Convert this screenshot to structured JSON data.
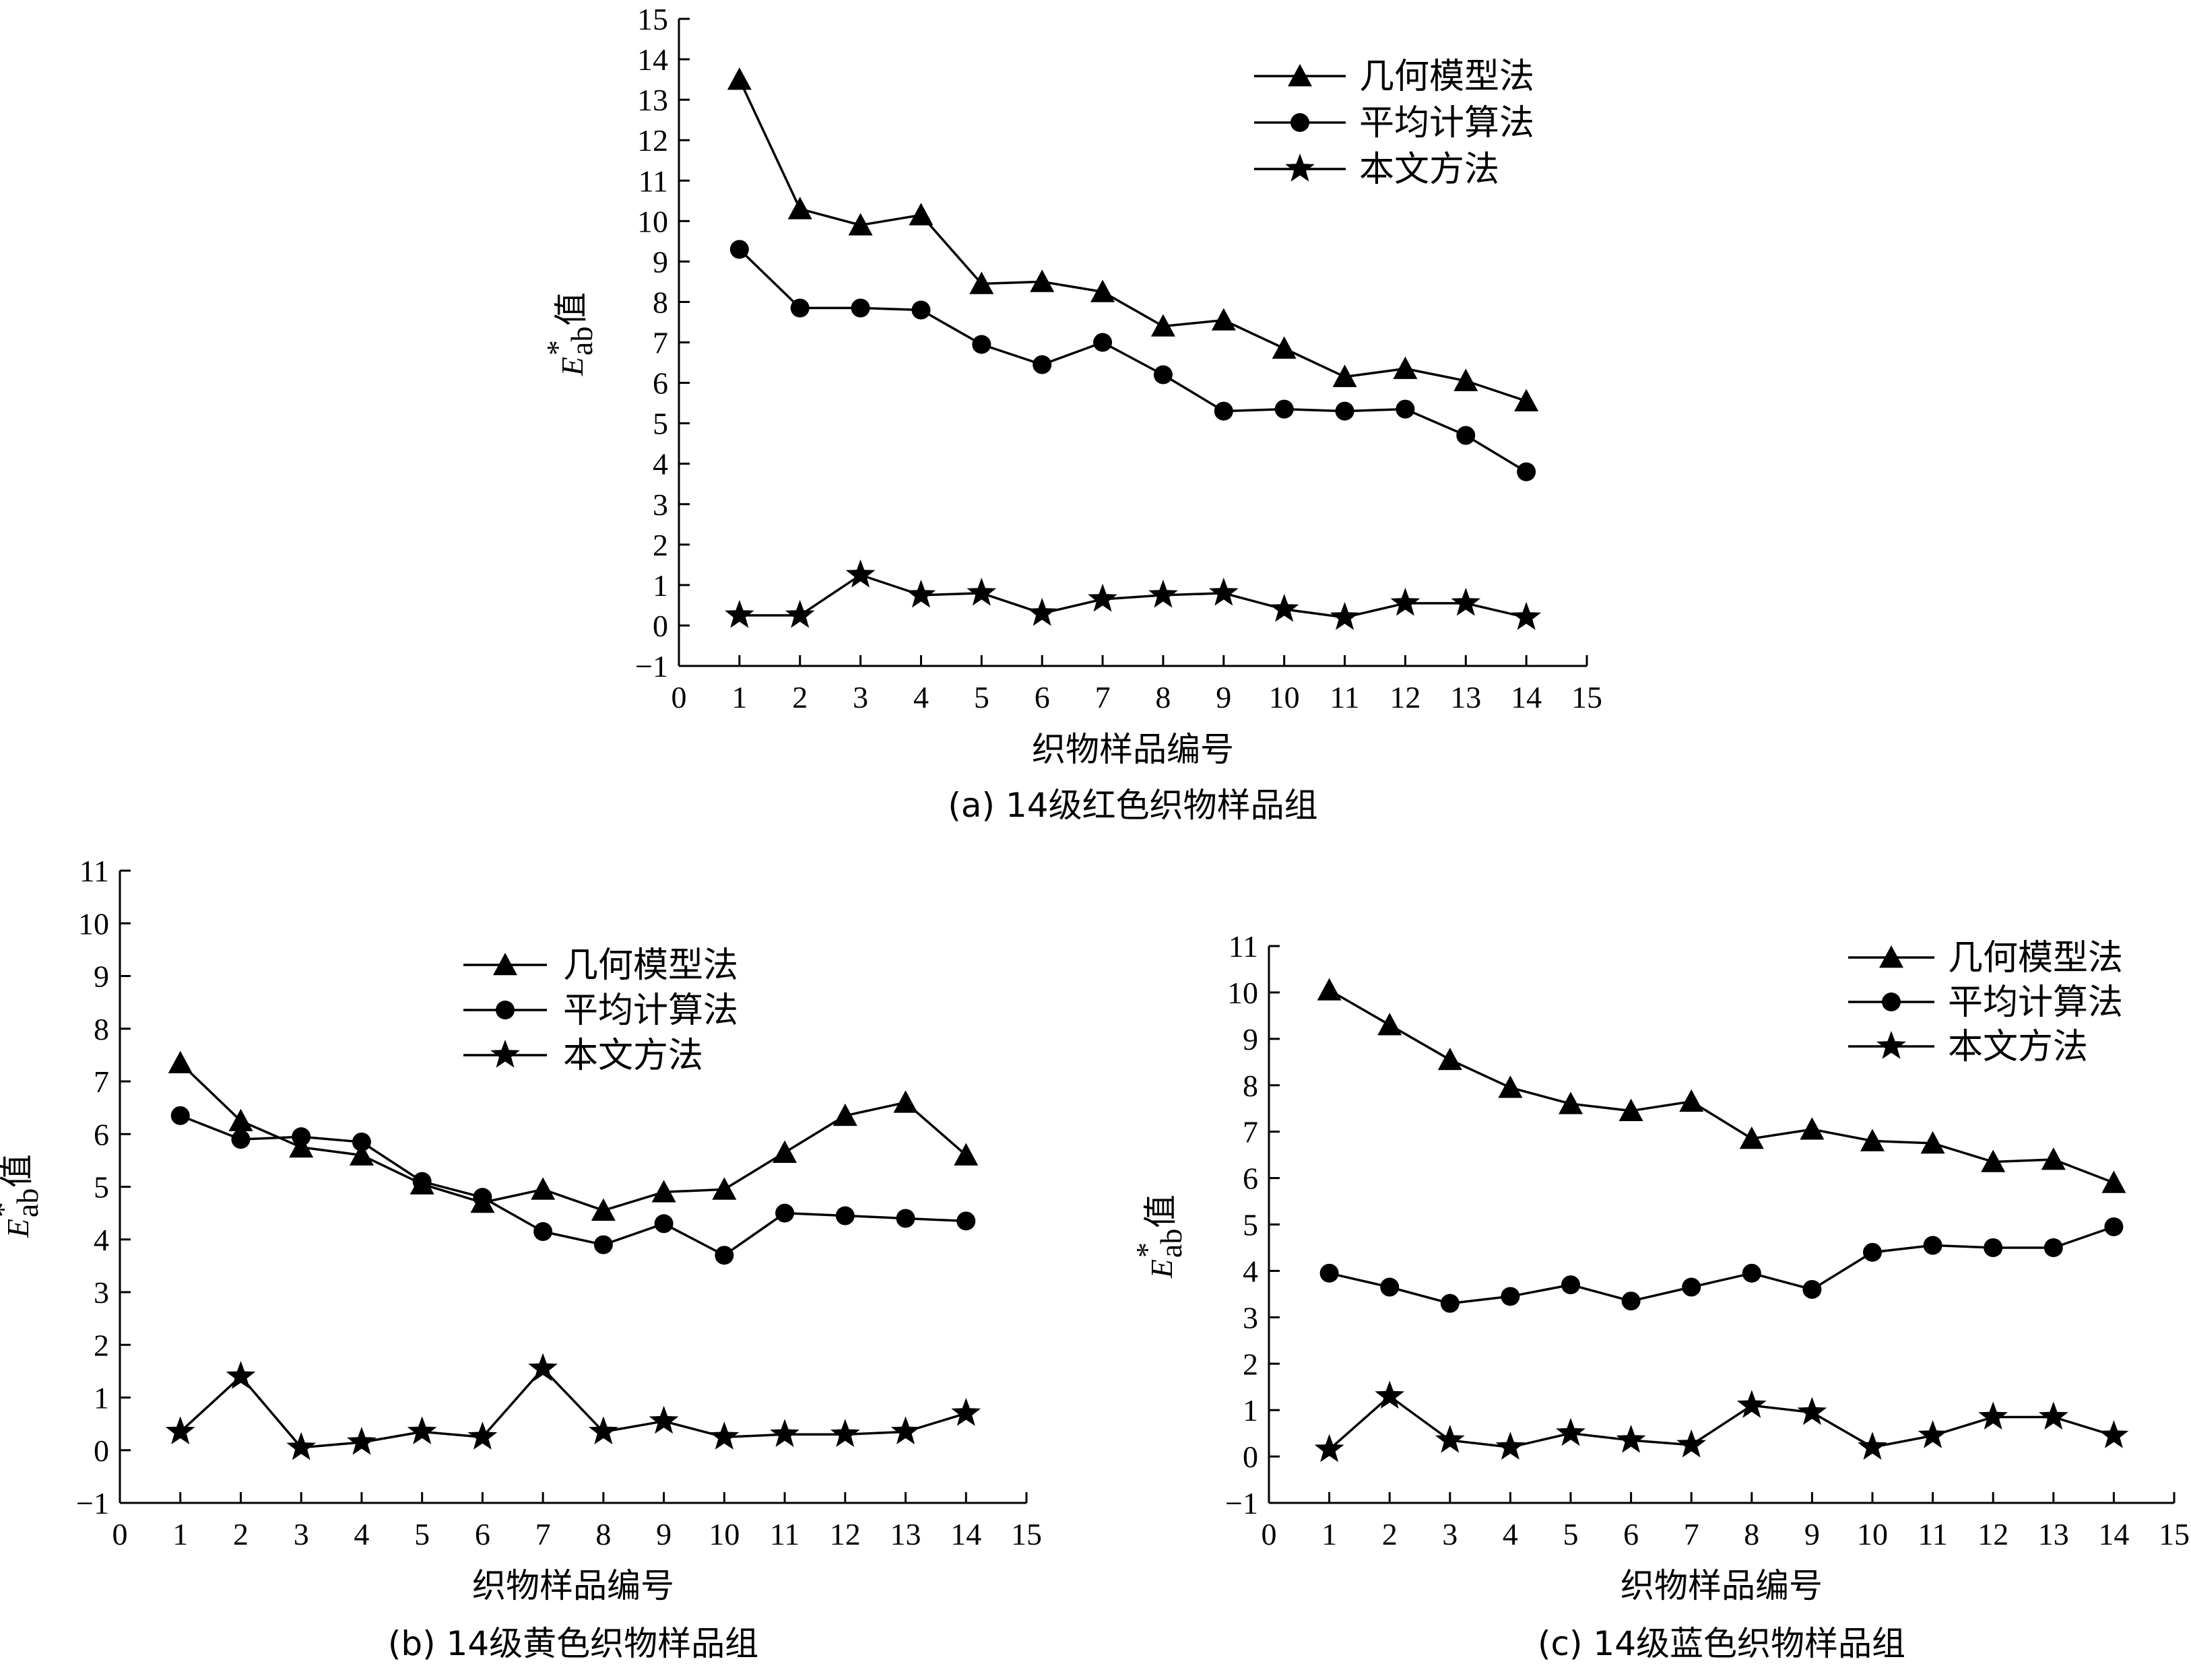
{
  "chart_data": [
    {
      "id": "a",
      "type": "line",
      "caption": "(a) 14级红色织物样品组",
      "xlabel": "织物样品编号",
      "ylabel_main": "E",
      "ylabel_sup": "*",
      "ylabel_sub": "ab",
      "ylabel_tail": "值",
      "xlim": [
        0,
        15
      ],
      "ylim": [
        -1,
        15
      ],
      "legend_position": "top-right",
      "x": [
        1,
        2,
        3,
        4,
        5,
        6,
        7,
        8,
        9,
        10,
        11,
        12,
        13,
        14
      ],
      "series": [
        {
          "name": "几何模型法",
          "marker": "triangle",
          "values": [
            13.5,
            10.3,
            9.9,
            10.15,
            8.45,
            8.5,
            8.25,
            7.4,
            7.55,
            6.85,
            6.15,
            6.35,
            6.05,
            5.55
          ]
        },
        {
          "name": "平均计算法",
          "marker": "circle",
          "values": [
            9.3,
            7.85,
            7.85,
            7.8,
            6.95,
            6.45,
            7.0,
            6.2,
            5.3,
            5.35,
            5.3,
            5.35,
            4.7,
            3.8
          ]
        },
        {
          "name": "本文方法",
          "marker": "star",
          "values": [
            0.25,
            0.25,
            1.25,
            0.75,
            0.8,
            0.3,
            0.65,
            0.75,
            0.8,
            0.4,
            0.2,
            0.55,
            0.55,
            0.2
          ]
        }
      ]
    },
    {
      "id": "b",
      "type": "line",
      "caption": "(b) 14级黄色织物样品组",
      "xlabel": "织物样品编号",
      "ylabel_main": "E",
      "ylabel_sup": "*",
      "ylabel_sub": "ab",
      "ylabel_tail": "值",
      "xlim": [
        0,
        15
      ],
      "ylim": [
        -1,
        11
      ],
      "legend_position": "top-center",
      "x": [
        1,
        2,
        3,
        4,
        5,
        6,
        7,
        8,
        9,
        10,
        11,
        12,
        13,
        14
      ],
      "series": [
        {
          "name": "几何模型法",
          "marker": "triangle",
          "values": [
            7.35,
            6.25,
            5.75,
            5.6,
            5.05,
            4.7,
            4.95,
            4.55,
            4.9,
            4.95,
            5.65,
            6.35,
            6.6,
            5.6
          ]
        },
        {
          "name": "平均计算法",
          "marker": "circle",
          "values": [
            6.35,
            5.9,
            5.95,
            5.85,
            5.1,
            4.8,
            4.15,
            3.9,
            4.3,
            3.7,
            4.5,
            4.45,
            4.4,
            4.35
          ]
        },
        {
          "name": "本文方法",
          "marker": "star",
          "values": [
            0.35,
            1.4,
            0.05,
            0.15,
            0.35,
            0.25,
            1.55,
            0.35,
            0.55,
            0.25,
            0.3,
            0.3,
            0.35,
            0.7
          ]
        }
      ]
    },
    {
      "id": "c",
      "type": "line",
      "caption": "(c) 14级蓝色织物样品组",
      "xlabel": "织物样品编号",
      "ylabel_main": "E",
      "ylabel_sup": "*",
      "ylabel_sub": "ab",
      "ylabel_tail": "值",
      "xlim": [
        0,
        15
      ],
      "ylim": [
        -1,
        11
      ],
      "legend_position": "top-right",
      "x": [
        1,
        2,
        3,
        4,
        5,
        6,
        7,
        8,
        9,
        10,
        11,
        12,
        13,
        14
      ],
      "series": [
        {
          "name": "几何模型法",
          "marker": "triangle",
          "values": [
            10.05,
            9.3,
            8.55,
            7.95,
            7.6,
            7.45,
            7.65,
            6.85,
            7.05,
            6.8,
            6.75,
            6.35,
            6.4,
            5.9
          ]
        },
        {
          "name": "平均计算法",
          "marker": "circle",
          "values": [
            3.95,
            3.65,
            3.3,
            3.45,
            3.7,
            3.35,
            3.65,
            3.95,
            3.6,
            4.4,
            4.55,
            4.5,
            4.5,
            4.95
          ]
        },
        {
          "name": "本文方法",
          "marker": "star",
          "values": [
            0.15,
            1.3,
            0.35,
            0.2,
            0.5,
            0.35,
            0.25,
            1.1,
            0.95,
            0.2,
            0.45,
            0.85,
            0.85,
            0.45
          ]
        }
      ]
    }
  ]
}
